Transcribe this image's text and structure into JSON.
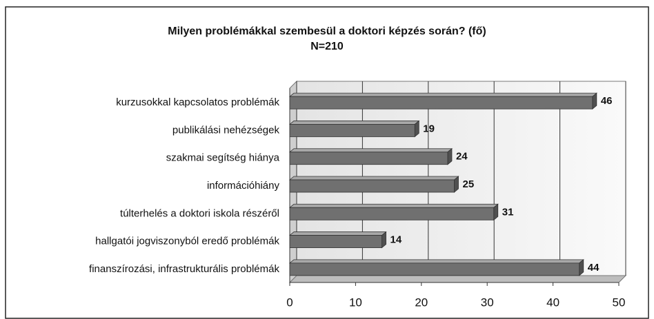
{
  "chart_data": {
    "type": "bar",
    "orientation": "horizontal",
    "title": "Milyen problémákkal szembesül a doktori képzés során? (fő)",
    "subtitle": "N=210",
    "categories": [
      "kurzusokkal kapcsolatos problémák",
      "publikálási nehézségek",
      "szakmai segítség hiánya",
      "információhiány",
      "túlterhelés a doktori iskola részéről",
      "hallgatói jogviszonyból eredő problémák",
      "finanszírozási, infrastrukturális problémák"
    ],
    "values": [
      46,
      19,
      24,
      25,
      31,
      14,
      44
    ],
    "color": "#707070",
    "xlim": [
      0,
      50
    ],
    "xticks": [
      0,
      10,
      20,
      30,
      40,
      50
    ],
    "grid": true
  }
}
